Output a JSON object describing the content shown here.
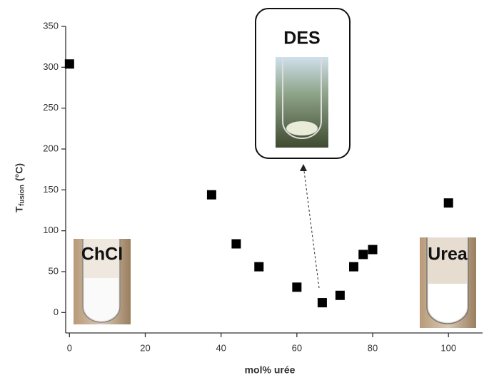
{
  "chart_data": {
    "type": "scatter",
    "xlabel": "mol% urée",
    "ylabel": "T",
    "ylabel_sub": "fusion",
    "ylabel_unit": "(°C)",
    "x": [
      0,
      37.5,
      44,
      50,
      60,
      66.7,
      71.4,
      75,
      77.5,
      80,
      100
    ],
    "values": [
      304,
      144,
      84,
      56,
      31,
      12,
      21,
      56,
      71,
      77,
      134
    ],
    "color": "#000000",
    "xlim": [
      -1,
      109
    ],
    "xticks": [
      0,
      20,
      40,
      60,
      80,
      100
    ],
    "ylim": [
      -25,
      350
    ],
    "yticks": [
      0,
      50,
      100,
      150,
      200,
      250,
      300,
      350
    ],
    "annotations": [
      "DES",
      "ChCl",
      "Urea"
    ]
  }
}
